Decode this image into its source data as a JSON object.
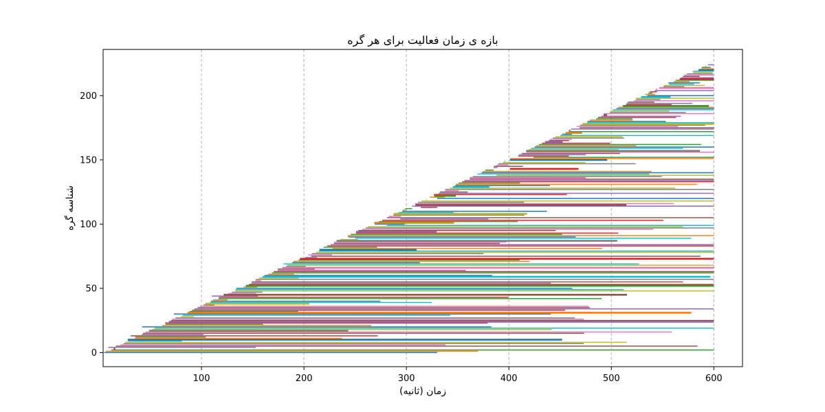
{
  "chart_data": {
    "type": "gantt",
    "title": "بازه ی زمان فعالیت برای هر گره",
    "xlabel": "زمان (ثانیه)",
    "ylabel": "شناسه گره",
    "xlim": [
      4,
      628
    ],
    "ylim": [
      -11,
      236
    ],
    "x_ticks": [
      100,
      200,
      300,
      400,
      500,
      600
    ],
    "y_ticks": [
      0,
      50,
      100,
      150,
      200
    ],
    "x_tick_labels": [
      "100",
      "200",
      "300",
      "400",
      "500",
      "600"
    ],
    "y_tick_labels": [
      "0",
      "50",
      "100",
      "150",
      "200"
    ],
    "grid": "x-only, dashed",
    "legend": "none",
    "node_count": 225,
    "start_time_range": [
      5,
      594
    ],
    "end_time_max": 600,
    "sample_intervals": [
      {
        "node": 0,
        "start": 5,
        "end": 330
      },
      {
        "node": 4,
        "start": 9,
        "end": 153
      },
      {
        "node": 10,
        "start": 28,
        "end": 452
      },
      {
        "node": 13,
        "start": 31,
        "end": 272
      },
      {
        "node": 20,
        "start": 42,
        "end": 383
      },
      {
        "node": 30,
        "start": 73,
        "end": 441
      },
      {
        "node": 44,
        "start": 110,
        "end": 155
      },
      {
        "node": 50,
        "start": 134,
        "end": 462
      },
      {
        "node": 55,
        "start": 149,
        "end": 570
      },
      {
        "node": 69,
        "start": 180,
        "end": 527
      },
      {
        "node": 75,
        "start": 207,
        "end": 587
      },
      {
        "node": 81,
        "start": 228,
        "end": 491
      },
      {
        "node": 89,
        "start": 250,
        "end": 578
      },
      {
        "node": 99,
        "start": 281,
        "end": 600
      },
      {
        "node": 104,
        "start": 294,
        "end": 380
      },
      {
        "node": 113,
        "start": 314,
        "end": 330
      },
      {
        "node": 120,
        "start": 330,
        "end": 600
      },
      {
        "node": 138,
        "start": 388,
        "end": 600
      },
      {
        "node": 143,
        "start": 401,
        "end": 468
      },
      {
        "node": 152,
        "start": 424,
        "end": 600
      },
      {
        "node": 175,
        "start": 469,
        "end": 600
      },
      {
        "node": 190,
        "start": 505,
        "end": 600
      },
      {
        "node": 200,
        "start": 535,
        "end": 600
      },
      {
        "node": 220,
        "start": 585,
        "end": 600
      }
    ],
    "colors": [
      "#1f77b4",
      "#ff7f0e",
      "#2ca02c",
      "#d62728",
      "#9467bd",
      "#8c564b",
      "#e377c2",
      "#7f7f7f",
      "#bcbd22",
      "#17becf"
    ]
  }
}
